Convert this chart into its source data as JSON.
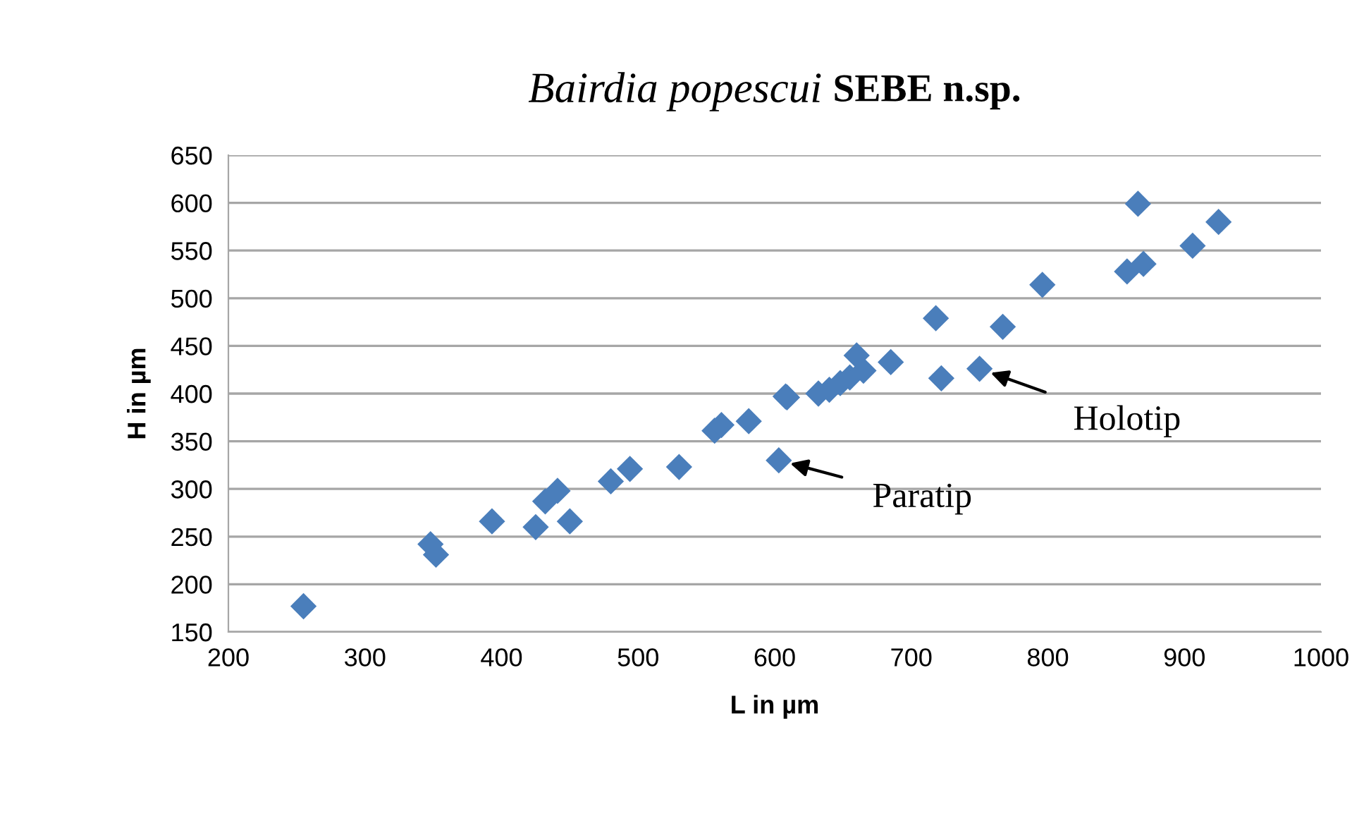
{
  "chart_data": {
    "type": "scatter",
    "title": "Bairdia popescui SEBE n.sp.",
    "xlabel": "L in µm",
    "ylabel": "H in µm",
    "x": [
      255,
      348,
      352,
      393,
      425,
      432,
      441,
      450,
      480,
      494,
      530,
      556,
      561,
      581,
      603,
      608,
      609,
      632,
      640,
      648,
      655,
      660,
      665,
      685,
      718,
      722,
      750,
      767,
      796,
      858,
      866,
      870,
      906,
      925
    ],
    "series": [
      {
        "color": "#4a7ebb",
        "values": [
          177,
          242,
          231,
          266,
          260,
          287,
          298,
          266,
          308,
          321,
          323,
          361,
          367,
          371,
          330,
          397,
          396,
          400,
          404,
          411,
          417,
          440,
          424,
          433,
          479,
          416,
          426,
          470,
          514,
          528,
          599,
          536,
          555,
          580
        ]
      }
    ],
    "annotations": [
      {
        "text": "Holotip",
        "x": 750,
        "y": 426
      },
      {
        "text": "Paratip",
        "x": 603,
        "y": 330
      }
    ],
    "xlim": [
      200,
      1000
    ],
    "xticks": [
      200,
      300,
      400,
      500,
      600,
      700,
      800,
      900,
      1000
    ],
    "ylim": [
      150,
      650
    ],
    "yticks": [
      150,
      200,
      250,
      300,
      350,
      400,
      450,
      500,
      550,
      600,
      650
    ],
    "grid": "y",
    "marker": "diamond",
    "legend": false
  }
}
